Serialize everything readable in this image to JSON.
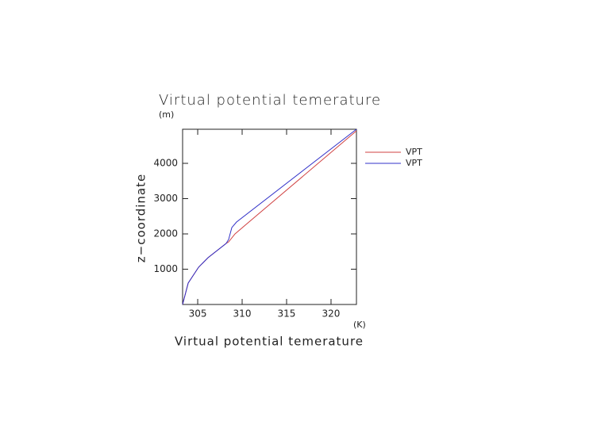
{
  "chart_data": {
    "type": "line",
    "title": "Virtual potential temerature",
    "x_label": "Virtual potential temerature",
    "x_unit": "(K)",
    "y_label": "z−coordinate",
    "y_unit": "(m)",
    "xlim": [
      303.3,
      322.86
    ],
    "xticks": [
      305,
      310,
      315,
      320
    ],
    "ylim": [
      0,
      4966
    ],
    "yticks": [
      1000,
      2000,
      3000,
      4000
    ],
    "legend": "right",
    "series": [
      {
        "name": "VPT",
        "color": "#d04040",
        "x": [
          303.3,
          303.93,
          305.1,
          306.16,
          308.2,
          308.48,
          309.2,
          310.45,
          322.86
        ],
        "values": [
          0,
          607,
          1056,
          1326,
          1730,
          1775,
          2000,
          2270,
          4920
        ]
      },
      {
        "name": "VPT",
        "color": "#3030c8",
        "x": [
          303.3,
          303.93,
          305.1,
          306.16,
          308.2,
          308.48,
          308.84,
          309.37,
          322.86
        ],
        "values": [
          0,
          607,
          1056,
          1326,
          1730,
          1843,
          2180,
          2337,
          4966
        ]
      }
    ]
  }
}
